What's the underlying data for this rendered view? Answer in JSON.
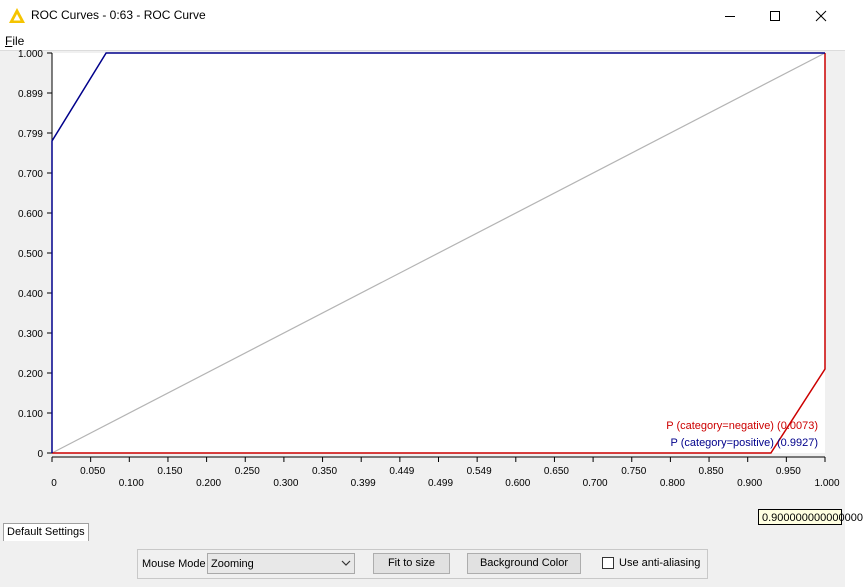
{
  "window": {
    "title": "ROC Curves - 0:63 - ROC Curve",
    "icon": "knime-warning-triangle-icon",
    "controls": [
      "minimize-icon",
      "maximize-icon",
      "close-icon"
    ]
  },
  "menu": {
    "file_label": "File"
  },
  "tabs": [
    {
      "label": "Default Settings"
    }
  ],
  "tooltip": {
    "text": "0.900000000000000"
  },
  "controls": {
    "mouse_mode_label": "Mouse Mode",
    "mouse_mode_value": "Zooming",
    "fit_label": "Fit to size",
    "background_label": "Background Color",
    "antialias_label": "Use anti-aliasing",
    "antialias_checked": false
  },
  "colors": {
    "positive": "#00008b",
    "negative": "#cc0000",
    "diagonal": "#b4b4b4",
    "plot_bg": "#ffffff",
    "frame_bg": "#f0f0f0"
  },
  "chart_data": {
    "type": "line",
    "title": "",
    "xlabel": "",
    "ylabel": "",
    "xlim": [
      0,
      1
    ],
    "ylim": [
      0,
      1
    ],
    "legend_position": "bottom-right",
    "x_ticks": [
      "0",
      "0.050",
      "0.100",
      "0.150",
      "0.200",
      "0.250",
      "0.300",
      "0.350",
      "0.399",
      "0.449",
      "0.499",
      "0.549",
      "0.600",
      "0.650",
      "0.700",
      "0.750",
      "0.800",
      "0.850",
      "0.900",
      "0.950",
      "1.000"
    ],
    "y_ticks": [
      {
        "label": "1.000",
        "value": 1.0
      },
      {
        "label": "0.899",
        "value": 0.9
      },
      {
        "label": "0.799",
        "value": 0.8
      },
      {
        "label": "0.700",
        "value": 0.7
      },
      {
        "label": "0.600",
        "value": 0.6
      },
      {
        "label": "0.500",
        "value": 0.5
      },
      {
        "label": "0.400",
        "value": 0.4
      },
      {
        "label": "0.300",
        "value": 0.3
      },
      {
        "label": "0.200",
        "value": 0.2
      },
      {
        "label": "0.100",
        "value": 0.1
      },
      {
        "label": "0",
        "value": 0.0
      }
    ],
    "series": [
      {
        "name": "P (category=negative) (0.0073)",
        "color": "#cc0000",
        "points": [
          [
            0,
            0
          ],
          [
            0.93,
            0
          ],
          [
            1.0,
            0.21
          ],
          [
            1.0,
            1.0
          ]
        ]
      },
      {
        "name": "P (category=positive) (0.9927)",
        "color": "#00008b",
        "points": [
          [
            0,
            0
          ],
          [
            0,
            0.78
          ],
          [
            0.07,
            1.0
          ],
          [
            1.0,
            1.0
          ]
        ]
      }
    ],
    "diagonal": [
      [
        0,
        0
      ],
      [
        1,
        1
      ]
    ]
  }
}
